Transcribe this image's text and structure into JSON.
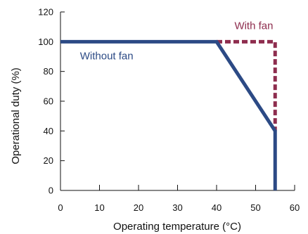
{
  "chart_data": {
    "type": "line",
    "xlabel": "Operating temperature (°C)",
    "ylabel": "Operational duty (%)",
    "xlim": [
      0,
      60
    ],
    "ylim": [
      0,
      120
    ],
    "x_ticks": [
      "0",
      "10",
      "20",
      "30",
      "40",
      "50",
      "60"
    ],
    "y_ticks": [
      "0",
      "20",
      "40",
      "60",
      "80",
      "100",
      "120"
    ],
    "grid": false,
    "legend": "none",
    "series": [
      {
        "name": "Without fan",
        "color": "#2c4a85",
        "style": "solid",
        "points": [
          [
            0,
            100
          ],
          [
            40,
            100
          ],
          [
            55,
            40
          ],
          [
            55,
            0
          ]
        ]
      },
      {
        "name": "With fan",
        "color": "#8e2d4e",
        "style": "dashed",
        "points": [
          [
            40,
            100
          ],
          [
            55,
            100
          ],
          [
            55,
            40
          ]
        ]
      }
    ]
  }
}
